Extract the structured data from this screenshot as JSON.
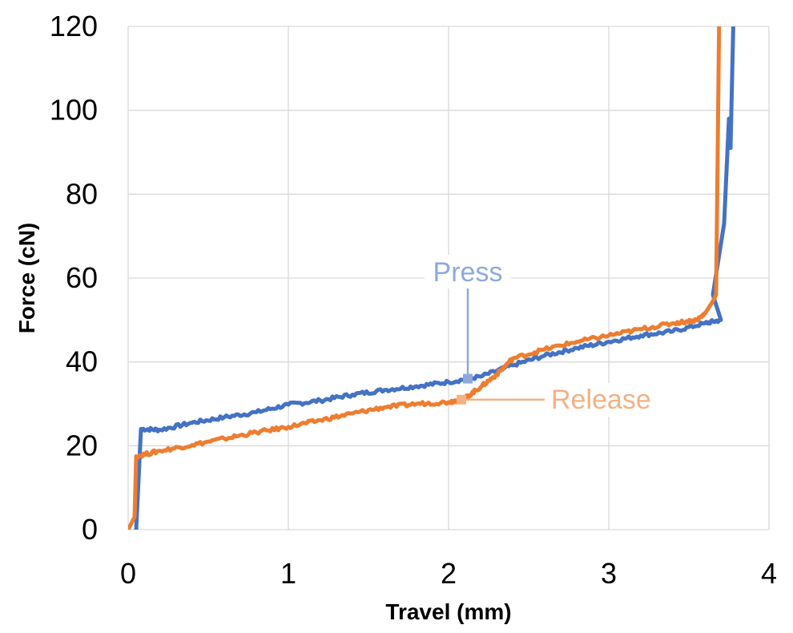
{
  "chart_data": {
    "type": "line",
    "title": "",
    "xlabel": "Travel (mm)",
    "ylabel": "Force (cN)",
    "xlim": [
      0,
      4
    ],
    "ylim": [
      0,
      120
    ],
    "x_ticks": [
      0,
      1,
      2,
      3,
      4
    ],
    "y_ticks": [
      0,
      20,
      40,
      60,
      80,
      100,
      120
    ],
    "x_tick_labels": [
      "0",
      "1",
      "2",
      "3",
      "4"
    ],
    "y_tick_labels": [
      "0",
      "20",
      "40",
      "60",
      "80",
      "100",
      "120"
    ],
    "grid": true,
    "legend": "none",
    "series": [
      {
        "name": "Press",
        "color": "#4472C4",
        "points": [
          [
            0.05,
            0
          ],
          [
            0.08,
            24
          ],
          [
            0.2,
            23.8
          ],
          [
            0.4,
            25.5
          ],
          [
            0.6,
            26.8
          ],
          [
            0.8,
            28
          ],
          [
            1.0,
            29.8
          ],
          [
            1.2,
            30.8
          ],
          [
            1.4,
            32.2
          ],
          [
            1.6,
            33.3
          ],
          [
            1.8,
            34.2
          ],
          [
            2.0,
            35.2
          ],
          [
            2.2,
            36.5
          ],
          [
            2.4,
            39.2
          ],
          [
            2.6,
            41.5
          ],
          [
            2.8,
            43.3
          ],
          [
            3.0,
            44.8
          ],
          [
            3.2,
            46.3
          ],
          [
            3.4,
            47.3
          ],
          [
            3.6,
            49.2
          ],
          [
            3.7,
            50
          ],
          [
            3.65,
            56
          ],
          [
            3.72,
            73
          ],
          [
            3.75,
            98
          ],
          [
            3.76,
            91
          ],
          [
            3.78,
            125
          ]
        ]
      },
      {
        "name": "Release",
        "color": "#ED7D31",
        "points": [
          [
            0.0,
            0
          ],
          [
            0.04,
            3
          ],
          [
            0.05,
            17.5
          ],
          [
            0.2,
            18.8
          ],
          [
            0.4,
            20.2
          ],
          [
            0.6,
            21.7
          ],
          [
            0.8,
            23.2
          ],
          [
            1.0,
            24.5
          ],
          [
            1.2,
            26.1
          ],
          [
            1.4,
            27.7
          ],
          [
            1.6,
            29.2
          ],
          [
            1.8,
            30
          ],
          [
            2.0,
            30.4
          ],
          [
            2.1,
            31.3
          ],
          [
            2.2,
            34
          ],
          [
            2.3,
            37
          ],
          [
            2.4,
            40.8
          ],
          [
            2.6,
            43
          ],
          [
            2.8,
            44.8
          ],
          [
            3.0,
            46.3
          ],
          [
            3.2,
            47.8
          ],
          [
            3.4,
            49.2
          ],
          [
            3.55,
            50
          ],
          [
            3.6,
            51.5
          ],
          [
            3.65,
            54.5
          ],
          [
            3.67,
            56
          ],
          [
            3.69,
            125
          ]
        ]
      }
    ],
    "annotations": [
      {
        "text": "Press",
        "series": "Press",
        "point": [
          2.12,
          36
        ],
        "color": "#8EA9DB"
      },
      {
        "text": "Release",
        "series": "Release",
        "point": [
          2.08,
          31
        ],
        "color": "#F4B183"
      }
    ]
  }
}
